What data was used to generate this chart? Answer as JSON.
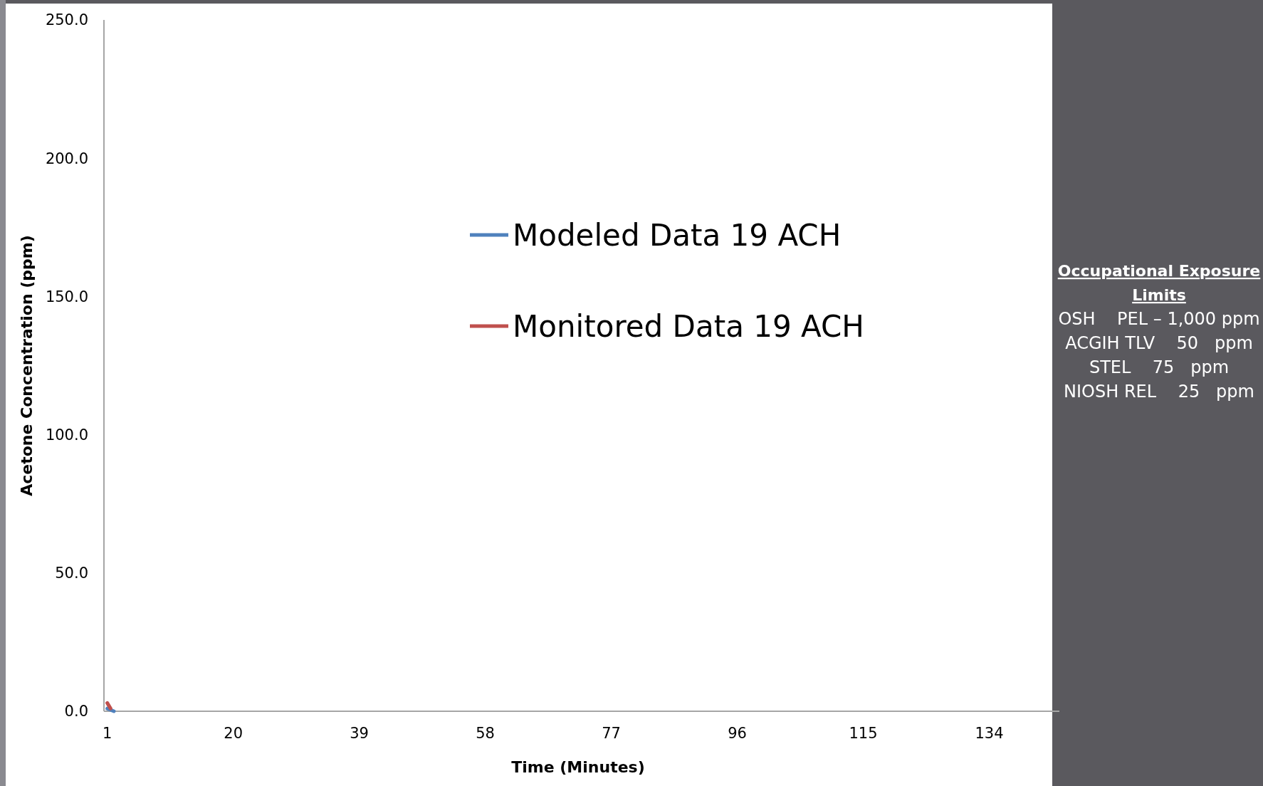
{
  "chart_data": {
    "type": "line",
    "xlabel": "Time (Minutes)",
    "ylabel": "Acetone Concentration (ppm)",
    "xlim": [
      0.5,
      143.5
    ],
    "xticks": [
      1,
      20,
      39,
      58,
      77,
      96,
      115,
      134
    ],
    "ylim": [
      0,
      250
    ],
    "yticks": [
      {
        "value": 0,
        "label": "0.0"
      },
      {
        "value": 50,
        "label": "50.0"
      },
      {
        "value": 100,
        "label": "100.0"
      },
      {
        "value": 150,
        "label": "150.0"
      },
      {
        "value": 200,
        "label": "200.0"
      },
      {
        "value": 250,
        "label": "250.0"
      }
    ],
    "series": [
      {
        "name": "Modeled Data 19 ACH",
        "color": "#4f81bd",
        "x": [
          1,
          2
        ],
        "values": [
          1,
          0
        ]
      },
      {
        "name": "Monitored Data 19 ACH",
        "color": "#c0504d",
        "x": [
          1,
          1.5
        ],
        "values": [
          3,
          1
        ]
      }
    ],
    "legend": "top",
    "grid": false,
    "annotations": [
      "Occupational Exposure Limits",
      "OSH    PEL – 1,000 ppm",
      "ACGIH TLV    50   ppm",
      "STEL    75   ppm",
      "NIOSH REL    25   ppm"
    ]
  }
}
